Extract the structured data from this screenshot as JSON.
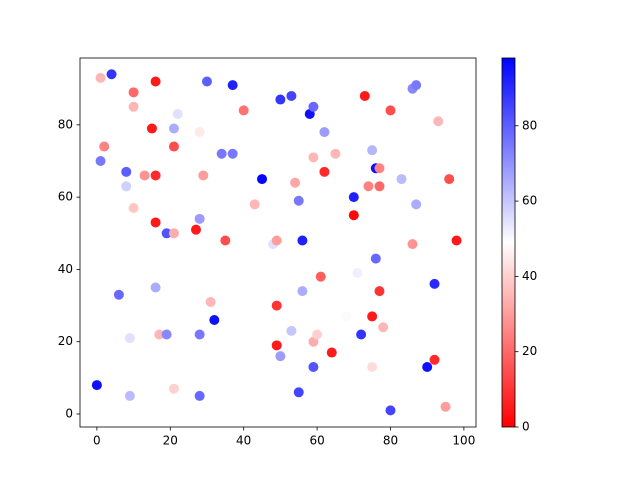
{
  "chart_data": {
    "type": "scatter",
    "x": [
      0,
      1,
      4,
      1,
      2,
      6,
      8,
      8,
      9,
      9,
      10,
      10,
      10,
      13,
      15,
      16,
      16,
      16,
      16,
      17,
      19,
      19,
      21,
      21,
      21,
      21,
      22,
      27,
      28,
      28,
      28,
      28,
      29,
      30,
      31,
      32,
      34,
      35,
      37,
      37,
      40,
      43,
      45,
      48,
      49,
      49,
      49,
      50,
      50,
      53,
      53,
      54,
      55,
      55,
      56,
      56,
      58,
      59,
      59,
      59,
      59,
      60,
      61,
      62,
      62,
      64,
      65,
      68,
      70,
      70,
      71,
      72,
      73,
      74,
      75,
      75,
      75,
      76,
      76,
      77,
      77,
      77,
      78,
      80,
      80,
      83,
      86,
      86,
      87,
      87,
      90,
      92,
      92,
      93,
      95,
      96,
      98
    ],
    "values": [
      8,
      93,
      94,
      70,
      74,
      33,
      67,
      63,
      21,
      5,
      89,
      85,
      57,
      66,
      79,
      92,
      66,
      53,
      35,
      22,
      50,
      22,
      79,
      74,
      50,
      7,
      83,
      51,
      78,
      54,
      22,
      5,
      66,
      92,
      31,
      26,
      72,
      48,
      91,
      72,
      84,
      58,
      65,
      47,
      48,
      30,
      19,
      87,
      16,
      88,
      23,
      64,
      59,
      6,
      48,
      34,
      83,
      85,
      71,
      20,
      13,
      22,
      38,
      78,
      67,
      17,
      72,
      27,
      60,
      55,
      39,
      22,
      88,
      63,
      73,
      27,
      13,
      68,
      43,
      68,
      63,
      34,
      24,
      84,
      1,
      65,
      90,
      47,
      91,
      58,
      13,
      36,
      15,
      81,
      2,
      65,
      48
    ],
    "c": [
      95,
      35,
      88,
      75,
      25,
      78,
      80,
      58,
      55,
      62,
      20,
      35,
      38,
      28,
      5,
      5,
      8,
      5,
      65,
      35,
      82,
      72,
      65,
      15,
      33,
      40,
      55,
      5,
      45,
      68,
      75,
      78,
      30,
      80,
      35,
      95,
      75,
      15,
      92,
      75,
      22,
      35,
      97,
      55,
      30,
      10,
      5,
      88,
      68,
      85,
      60,
      32,
      75,
      85,
      92,
      65,
      95,
      78,
      35,
      33,
      82,
      40,
      18,
      68,
      8,
      5,
      35,
      50,
      92,
      2,
      52,
      88,
      5,
      25,
      63,
      5,
      42,
      95,
      78,
      25,
      20,
      10,
      35,
      15,
      85,
      62,
      72,
      28,
      75,
      65,
      95,
      90,
      8,
      35,
      30,
      15,
      5
    ],
    "colormap": "bwr_r",
    "clim": [
      0,
      98
    ],
    "cticks": [
      0,
      20,
      40,
      60,
      80
    ],
    "xlim": [
      -4.6,
      103.3
    ],
    "ylim": [
      -3.6,
      98.5
    ],
    "xticks": [
      0,
      20,
      40,
      60,
      80,
      100
    ],
    "yticks": [
      0,
      20,
      40,
      60,
      80
    ]
  }
}
